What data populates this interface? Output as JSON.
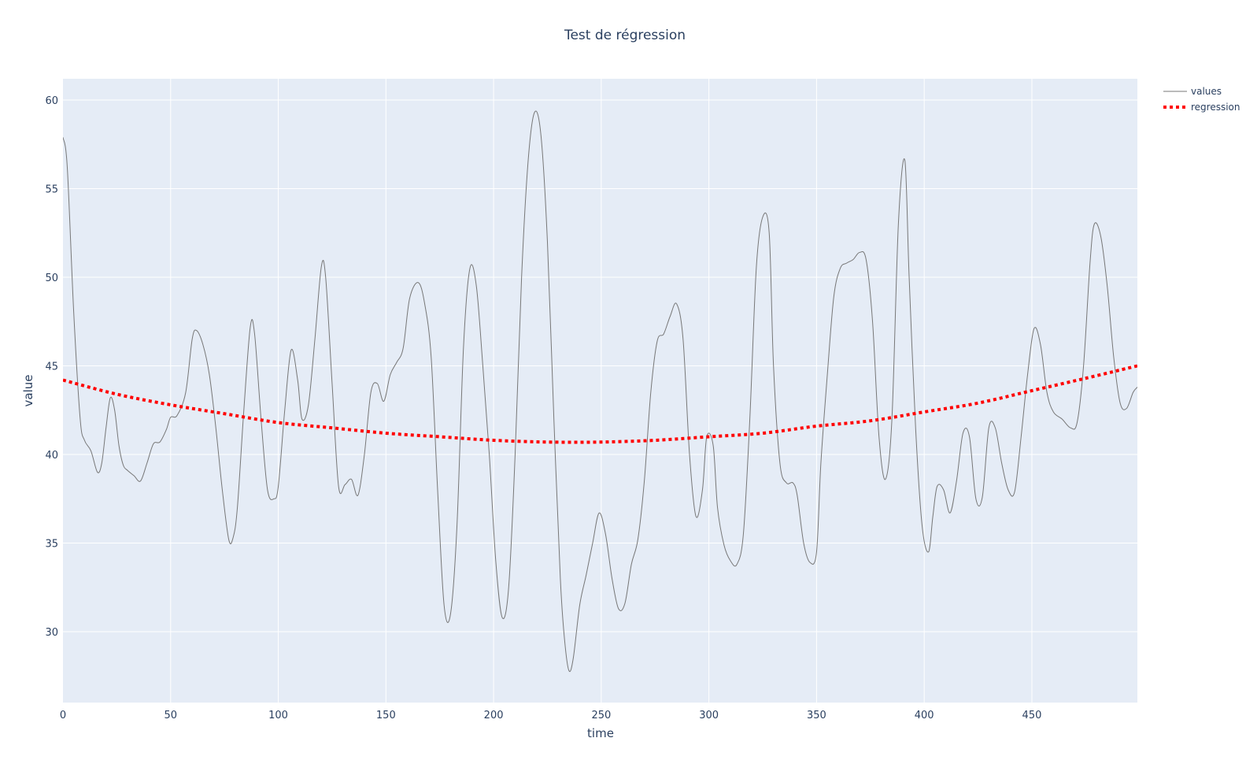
{
  "chart_data": {
    "type": "line",
    "title": "Test de régression",
    "xlabel": "time",
    "ylabel": "value",
    "xlim": [
      0,
      499
    ],
    "ylim": [
      26,
      61.2
    ],
    "x_ticks": [
      0,
      50,
      100,
      150,
      200,
      250,
      300,
      350,
      400,
      450
    ],
    "y_ticks": [
      30,
      35,
      40,
      45,
      50,
      55,
      60
    ],
    "grid": true,
    "legend_position": "top-right",
    "colors": {
      "plot_bg": "#e5ecf6",
      "grid": "#ffffff",
      "values": "#777777",
      "regression": "#ff0000"
    },
    "series": [
      {
        "name": "values",
        "style": "solid",
        "x": [
          0,
          2,
          5,
          8,
          10,
          13,
          16,
          18,
          20,
          22,
          24,
          26,
          28,
          30,
          33,
          36,
          39,
          42,
          45,
          48,
          50,
          53,
          57,
          60,
          62,
          65,
          68,
          71,
          74,
          77,
          79,
          81,
          84,
          87,
          89,
          92,
          95,
          98,
          100,
          103,
          106,
          109,
          111,
          114,
          117,
          120,
          122,
          125,
          128,
          131,
          134,
          137,
          140,
          143,
          146,
          149,
          152,
          155,
          158,
          161,
          165,
          168,
          171,
          174,
          177,
          180,
          183,
          186,
          189,
          192,
          195,
          198,
          201,
          204,
          207,
          210,
          213,
          216,
          219,
          222,
          225,
          228,
          231,
          233,
          235,
          237,
          240,
          243,
          246,
          249,
          252,
          255,
          258,
          261,
          264,
          267,
          270,
          273,
          276,
          279,
          282,
          285,
          288,
          291,
          294,
          297,
          299,
          302,
          304,
          307,
          310,
          313,
          316,
          319,
          322,
          325,
          328,
          330,
          333,
          336,
          339,
          341,
          344,
          347,
          350,
          352,
          355,
          358,
          361,
          364,
          367,
          370,
          373,
          376,
          379,
          382,
          385,
          388,
          391,
          393,
          396,
          399,
          402,
          404,
          406,
          409,
          412,
          415,
          418,
          421,
          424,
          427,
          430,
          433,
          436,
          439,
          442,
          445,
          448,
          451,
          454,
          457,
          460,
          464,
          468,
          471,
          474,
          477,
          479,
          482,
          485,
          488,
          491,
          494,
          497,
          499
        ],
        "y": [
          57.9,
          56.2,
          48,
          42,
          40.8,
          40.2,
          39,
          39.5,
          41.5,
          43.2,
          42.5,
          40.5,
          39.4,
          39.1,
          38.8,
          38.5,
          39.5,
          40.6,
          40.7,
          41.4,
          42.1,
          42.2,
          43.5,
          46.5,
          47,
          46.2,
          44.5,
          41.5,
          38,
          35.2,
          35.3,
          37,
          42.5,
          47.2,
          46.8,
          42,
          38,
          37.5,
          38.2,
          42.5,
          45.9,
          44.2,
          42,
          42.8,
          46.5,
          50.6,
          50,
          44,
          38.2,
          38.3,
          38.6,
          37.7,
          40,
          43.5,
          44,
          43,
          44.5,
          45.2,
          46,
          48.8,
          49.7,
          48.5,
          45.5,
          38,
          31.5,
          31,
          36,
          46,
          50.5,
          49.5,
          45,
          40,
          34,
          30.8,
          32.5,
          40,
          50,
          56.5,
          59.3,
          58,
          52,
          42,
          33,
          29.5,
          27.8,
          28.5,
          31.5,
          33.2,
          35,
          36.7,
          35.5,
          33,
          31.3,
          31.6,
          33.8,
          35.2,
          38.5,
          43.5,
          46.4,
          46.8,
          47.8,
          48.5,
          46.5,
          40,
          36.5,
          38,
          41,
          40.5,
          37,
          34.9,
          34,
          33.8,
          35.5,
          42,
          50.5,
          53.4,
          52.5,
          45,
          39.5,
          38.4,
          38.4,
          37.7,
          35,
          33.9,
          34.5,
          39.5,
          44.5,
          48.9,
          50.5,
          50.8,
          51,
          51.4,
          51,
          47.5,
          41,
          38.6,
          42,
          53,
          56.6,
          50,
          41.5,
          36,
          34.5,
          36.5,
          38.2,
          38,
          36.7,
          38.5,
          41.2,
          41,
          37.5,
          37.6,
          41.5,
          41.5,
          39.5,
          38,
          37.9,
          41,
          44.5,
          47.1,
          46.2,
          43.5,
          42.4,
          42,
          41.5,
          41.8,
          45,
          50.8,
          53,
          52.3,
          49.5,
          45.5,
          42.9,
          42.6,
          43.5,
          43.8
        ]
      },
      {
        "name": "regression",
        "style": "dot",
        "x": [
          0,
          25,
          50,
          75,
          100,
          125,
          150,
          175,
          200,
          225,
          250,
          275,
          300,
          325,
          350,
          375,
          400,
          425,
          450,
          475,
          499
        ],
        "y": [
          44.2,
          43.4,
          42.8,
          42.3,
          41.8,
          41.5,
          41.2,
          41,
          40.8,
          40.7,
          40.7,
          40.8,
          41,
          41.2,
          41.6,
          41.9,
          42.4,
          42.9,
          43.6,
          44.3,
          45
        ]
      }
    ]
  }
}
